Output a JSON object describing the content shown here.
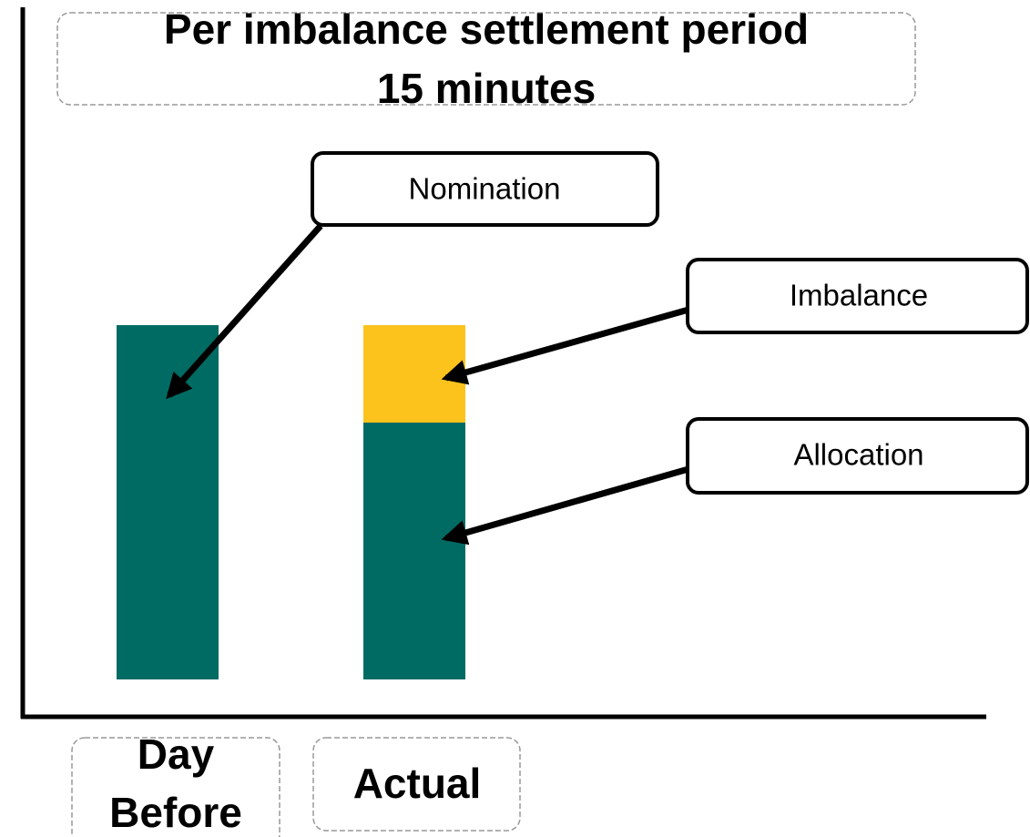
{
  "title": {
    "lines": [
      "Per imbalance settlement period",
      "15 minutes"
    ]
  },
  "callouts": {
    "nomination": "Nomination",
    "imbalance": "Imbalance",
    "allocation": "Allocation"
  },
  "categories": [
    {
      "lines": [
        "Day",
        "Before"
      ]
    },
    {
      "lines": [
        "Actual"
      ]
    }
  ]
}
